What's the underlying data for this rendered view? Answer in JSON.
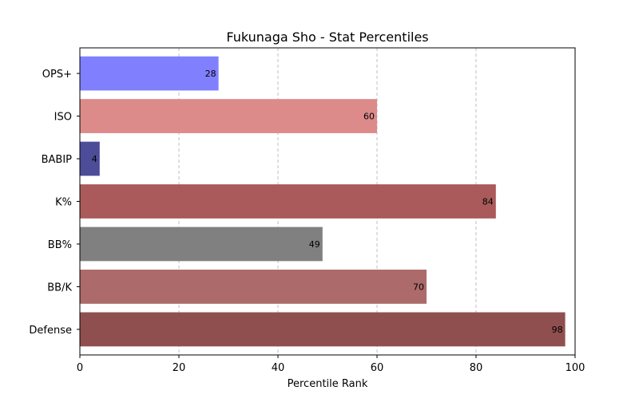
{
  "chart_data": {
    "type": "bar",
    "orientation": "horizontal",
    "title": "Fukunaga Sho - Stat Percentiles",
    "xlabel": "Percentile Rank",
    "ylabel": "",
    "xlim": [
      0,
      100
    ],
    "xticks": [
      0,
      20,
      40,
      60,
      80,
      100
    ],
    "grid": "x-axis dashed",
    "categories": [
      "OPS+",
      "ISO",
      "BABIP",
      "K%",
      "BB%",
      "BB/K",
      "Defense"
    ],
    "values": [
      28,
      60,
      4,
      84,
      49,
      70,
      98
    ],
    "colors": [
      "#8080ff",
      "#dc8a8a",
      "#4c4c99",
      "#aa5a5a",
      "#808080",
      "#ac6a6a",
      "#904f4f"
    ]
  }
}
